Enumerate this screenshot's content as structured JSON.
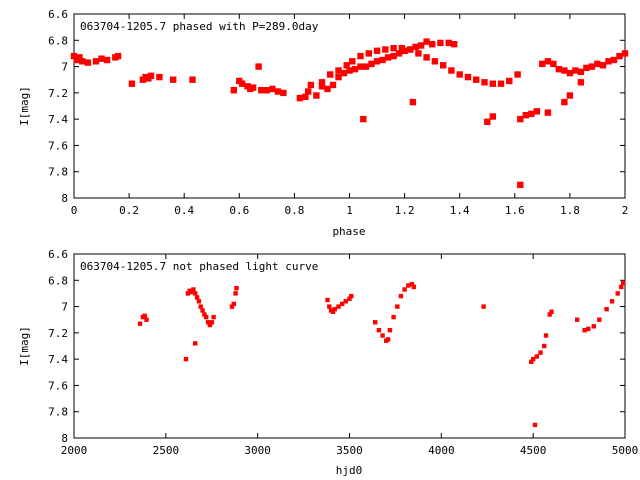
{
  "chart_data": [
    {
      "type": "scatter",
      "title": "063704-1205.7 phased with P=289.0day",
      "xlabel": "phase",
      "ylabel": "I[mag]",
      "xlim": [
        0,
        2
      ],
      "ylim": [
        8,
        6.6
      ],
      "y_inverted": true,
      "xticks": [
        "0",
        "0.2",
        "0.4",
        "0.6",
        "0.8",
        "1",
        "1.2",
        "1.4",
        "1.6",
        "1.8",
        "2"
      ],
      "xtick_values": [
        0,
        0.2,
        0.4,
        0.6,
        0.8,
        1,
        1.2,
        1.4,
        1.6,
        1.8,
        2
      ],
      "yticks": [
        "6.6",
        "6.8",
        "7",
        "7.2",
        "7.4",
        "7.6",
        "7.8",
        "8"
      ],
      "ytick_values": [
        6.6,
        6.8,
        7.0,
        7.2,
        7.4,
        7.6,
        7.8,
        8.0
      ],
      "grid": false,
      "marker_color": "#ff0000",
      "series": [
        {
          "values": [
            [
              0.0,
              6.92
            ],
            [
              0.01,
              6.95
            ],
            [
              0.02,
              6.93
            ],
            [
              0.03,
              6.96
            ],
            [
              0.05,
              6.97
            ],
            [
              0.08,
              6.96
            ],
            [
              0.1,
              6.94
            ],
            [
              0.12,
              6.95
            ],
            [
              0.15,
              6.93
            ],
            [
              0.16,
              6.92
            ],
            [
              0.21,
              7.13
            ],
            [
              0.25,
              7.1
            ],
            [
              0.26,
              7.08
            ],
            [
              0.27,
              7.09
            ],
            [
              0.28,
              7.07
            ],
            [
              0.31,
              7.08
            ],
            [
              0.36,
              7.1
            ],
            [
              0.43,
              7.1
            ],
            [
              0.58,
              7.18
            ],
            [
              0.6,
              7.11
            ],
            [
              0.61,
              7.13
            ],
            [
              0.63,
              7.15
            ],
            [
              0.64,
              7.17
            ],
            [
              0.65,
              7.16
            ],
            [
              0.67,
              7.0
            ],
            [
              0.68,
              7.18
            ],
            [
              0.7,
              7.18
            ],
            [
              0.72,
              7.17
            ],
            [
              0.74,
              7.19
            ],
            [
              0.76,
              7.2
            ],
            [
              0.82,
              7.24
            ],
            [
              0.84,
              7.23
            ],
            [
              0.85,
              7.19
            ],
            [
              0.86,
              7.14
            ],
            [
              0.88,
              7.22
            ],
            [
              0.9,
              7.15
            ],
            [
              0.92,
              7.17
            ],
            [
              0.94,
              7.14
            ],
            [
              0.96,
              7.08
            ],
            [
              0.98,
              7.05
            ],
            [
              1.0,
              7.03
            ],
            [
              1.02,
              7.02
            ],
            [
              1.04,
              7.0
            ],
            [
              1.06,
              7.0
            ],
            [
              1.08,
              6.98
            ],
            [
              1.1,
              6.96
            ],
            [
              1.12,
              6.95
            ],
            [
              1.14,
              6.93
            ],
            [
              1.16,
              6.92
            ],
            [
              1.18,
              6.9
            ],
            [
              1.2,
              6.88
            ],
            [
              1.22,
              6.87
            ],
            [
              1.24,
              6.85
            ],
            [
              0.9,
              7.12
            ],
            [
              0.93,
              7.06
            ],
            [
              0.96,
              7.03
            ],
            [
              0.99,
              6.99
            ],
            [
              1.01,
              6.96
            ],
            [
              1.04,
              6.92
            ],
            [
              1.07,
              6.9
            ],
            [
              1.1,
              6.88
            ],
            [
              1.13,
              6.87
            ],
            [
              1.16,
              6.86
            ],
            [
              1.19,
              6.86
            ],
            [
              1.22,
              6.87
            ],
            [
              1.25,
              6.9
            ],
            [
              1.28,
              6.93
            ],
            [
              1.31,
              6.96
            ],
            [
              1.34,
              6.99
            ],
            [
              1.37,
              7.03
            ],
            [
              1.4,
              7.06
            ],
            [
              1.43,
              7.08
            ],
            [
              1.46,
              7.1
            ],
            [
              1.49,
              7.12
            ],
            [
              1.52,
              7.13
            ],
            [
              1.55,
              7.13
            ],
            [
              1.58,
              7.11
            ],
            [
              1.61,
              7.06
            ],
            [
              1.26,
              6.84
            ],
            [
              1.28,
              6.81
            ],
            [
              1.3,
              6.83
            ],
            [
              1.33,
              6.82
            ],
            [
              1.36,
              6.82
            ],
            [
              1.38,
              6.83
            ],
            [
              1.05,
              7.4
            ],
            [
              1.23,
              7.27
            ],
            [
              1.5,
              7.42
            ],
            [
              1.52,
              7.38
            ],
            [
              1.62,
              7.4
            ],
            [
              1.64,
              7.37
            ],
            [
              1.66,
              7.36
            ],
            [
              1.68,
              7.34
            ],
            [
              1.72,
              7.35
            ],
            [
              1.62,
              7.9
            ],
            [
              1.7,
              6.98
            ],
            [
              1.72,
              6.96
            ],
            [
              1.74,
              6.98
            ],
            [
              1.76,
              7.02
            ],
            [
              1.78,
              7.03
            ],
            [
              1.8,
              7.05
            ],
            [
              1.82,
              7.03
            ],
            [
              1.84,
              7.04
            ],
            [
              1.86,
              7.01
            ],
            [
              1.88,
              7.0
            ],
            [
              1.9,
              6.98
            ],
            [
              1.92,
              6.99
            ],
            [
              1.94,
              6.96
            ],
            [
              1.96,
              6.95
            ],
            [
              1.98,
              6.92
            ],
            [
              2.0,
              6.9
            ],
            [
              1.78,
              7.27
            ],
            [
              1.8,
              7.22
            ],
            [
              1.84,
              7.12
            ]
          ]
        }
      ]
    },
    {
      "type": "scatter",
      "title": "063704-1205.7 not phased light curve",
      "xlabel": "hjd0",
      "ylabel": "I[mag]",
      "xlim": [
        2000,
        5000
      ],
      "ylim": [
        8,
        6.6
      ],
      "y_inverted": true,
      "xticks": [
        "2000",
        "2500",
        "3000",
        "3500",
        "4000",
        "4500",
        "5000"
      ],
      "xtick_values": [
        2000,
        2500,
        3000,
        3500,
        4000,
        4500,
        5000
      ],
      "yticks": [
        "6.6",
        "6.8",
        "7",
        "7.2",
        "7.4",
        "7.6",
        "7.8",
        "8"
      ],
      "ytick_values": [
        6.6,
        6.8,
        7.0,
        7.2,
        7.4,
        7.6,
        7.8,
        8.0
      ],
      "grid": false,
      "marker_color": "#ff0000",
      "series": [
        {
          "values": [
            [
              2360,
              7.13
            ],
            [
              2375,
              7.08
            ],
            [
              2385,
              7.07
            ],
            [
              2395,
              7.1
            ],
            [
              2610,
              7.4
            ],
            [
              2620,
              6.9
            ],
            [
              2630,
              6.88
            ],
            [
              2640,
              6.89
            ],
            [
              2650,
              6.87
            ],
            [
              2660,
              6.9
            ],
            [
              2670,
              6.93
            ],
            [
              2680,
              6.96
            ],
            [
              2690,
              7.0
            ],
            [
              2700,
              7.03
            ],
            [
              2710,
              7.06
            ],
            [
              2720,
              7.08
            ],
            [
              2730,
              7.12
            ],
            [
              2740,
              7.14
            ],
            [
              2750,
              7.12
            ],
            [
              2760,
              7.08
            ],
            [
              2660,
              7.28
            ],
            [
              2860,
              7.0
            ],
            [
              2870,
              6.98
            ],
            [
              2880,
              6.9
            ],
            [
              2885,
              6.86
            ],
            [
              3380,
              6.95
            ],
            [
              3390,
              7.0
            ],
            [
              3400,
              7.03
            ],
            [
              3410,
              7.04
            ],
            [
              3420,
              7.02
            ],
            [
              3440,
              7.0
            ],
            [
              3460,
              6.98
            ],
            [
              3480,
              6.96
            ],
            [
              3500,
              6.94
            ],
            [
              3510,
              6.92
            ],
            [
              3640,
              7.12
            ],
            [
              3660,
              7.18
            ],
            [
              3680,
              7.22
            ],
            [
              3700,
              7.26
            ],
            [
              3710,
              7.25
            ],
            [
              3720,
              7.18
            ],
            [
              3740,
              7.08
            ],
            [
              3760,
              7.0
            ],
            [
              3780,
              6.92
            ],
            [
              3800,
              6.87
            ],
            [
              3820,
              6.84
            ],
            [
              3840,
              6.83
            ],
            [
              3850,
              6.85
            ],
            [
              4230,
              7.0
            ],
            [
              4490,
              7.42
            ],
            [
              4500,
              7.4
            ],
            [
              4520,
              7.38
            ],
            [
              4540,
              7.35
            ],
            [
              4560,
              7.3
            ],
            [
              4570,
              7.22
            ],
            [
              4590,
              7.06
            ],
            [
              4600,
              7.04
            ],
            [
              4510,
              7.9
            ],
            [
              4740,
              7.1
            ],
            [
              4780,
              7.18
            ],
            [
              4800,
              7.17
            ],
            [
              4830,
              7.15
            ],
            [
              4860,
              7.1
            ],
            [
              4900,
              7.02
            ],
            [
              4930,
              6.96
            ],
            [
              4960,
              6.9
            ],
            [
              4980,
              6.85
            ],
            [
              4990,
              6.82
            ]
          ]
        }
      ]
    }
  ]
}
